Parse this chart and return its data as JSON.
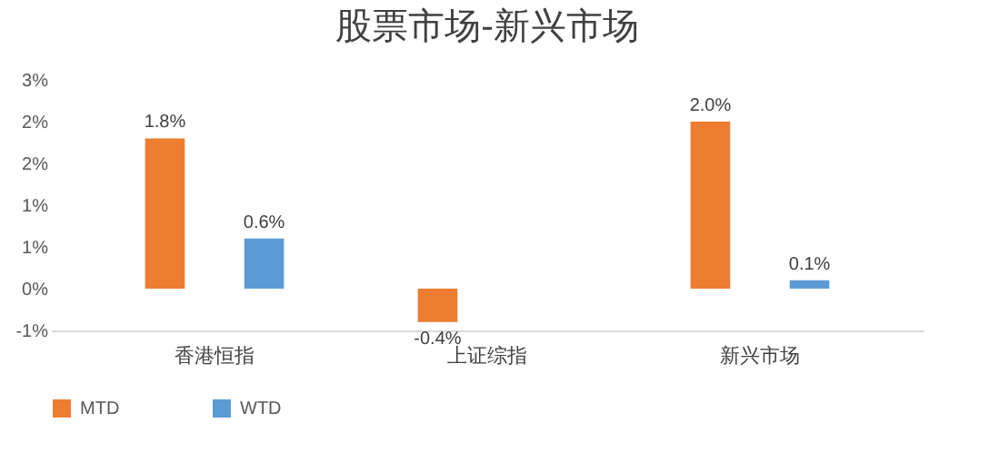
{
  "chart_data": {
    "type": "bar",
    "title": "股票市场-新兴市场",
    "categories": [
      "香港恒指",
      "上证综指",
      "新兴市场"
    ],
    "series": [
      {
        "name": "MTD",
        "color": "#ed7d31",
        "values": [
          1.8,
          -0.4,
          2.0
        ],
        "value_labels": [
          "1.8%",
          "-0.4%",
          "2.0%"
        ]
      },
      {
        "name": "WTD",
        "color": "#5b9bd5",
        "values": [
          0.6,
          null,
          0.1
        ],
        "value_labels": [
          "0.6%",
          null,
          "0.1%"
        ]
      }
    ],
    "ylim": [
      -0.5,
      2.5
    ],
    "yticks": [
      {
        "value": -0.5,
        "label": "-1%"
      },
      {
        "value": 0,
        "label": "0%"
      },
      {
        "value": 0.5,
        "label": "1%"
      },
      {
        "value": 1,
        "label": "1%"
      },
      {
        "value": 1.5,
        "label": "2%"
      },
      {
        "value": 2,
        "label": "2%"
      },
      {
        "value": 2.5,
        "label": "3%"
      }
    ],
    "grid": false,
    "legend": "bottom"
  }
}
